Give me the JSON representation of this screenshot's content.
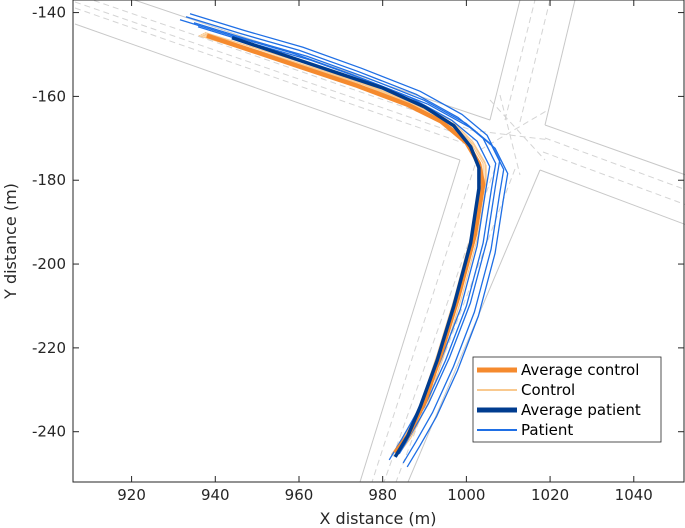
{
  "chart_data": {
    "type": "line",
    "xlabel": "X distance (m)",
    "ylabel": "Y distance (m)",
    "xlim": [
      906,
      1052
    ],
    "ylim": [
      -252,
      -137
    ],
    "xticks": [
      920,
      940,
      960,
      980,
      1000,
      1020,
      1040
    ],
    "yticks": [
      -140,
      -160,
      -180,
      -200,
      -220,
      -240
    ],
    "grid": false,
    "legend_position": "bottom-right",
    "colors": {
      "average_control": "#f58a2e",
      "control": "#f9c98f",
      "average_patient": "#003c8f",
      "patient": "#1f6fe5",
      "road": "#c8c8c8",
      "road_dashed": "#d4d4d4"
    },
    "series": [
      {
        "name": "Average control",
        "x": [
          938,
          950,
          962,
          974,
          986,
          994,
          1000,
          1003,
          1004,
          1002,
          998,
          994,
          990,
          986,
          983
        ],
        "y": [
          -145.5,
          -149.5,
          -153.5,
          -157.5,
          -162,
          -166,
          -171,
          -176,
          -181,
          -193,
          -208,
          -221,
          -233,
          -241,
          -245
        ]
      },
      {
        "name": "Control",
        "x": [
          937,
          950,
          963,
          976,
          988,
          996,
          1001,
          1004,
          1004,
          1002,
          998,
          994,
          990,
          986,
          983
        ],
        "y": [
          -145,
          -149,
          -153,
          -157,
          -162,
          -166,
          -171,
          -176,
          -181,
          -193,
          -208,
          -221,
          -233,
          -241,
          -245
        ]
      },
      {
        "name": "Average patient",
        "x": [
          944,
          956,
          968,
          980,
          990,
          997,
          1001,
          1003,
          1003,
          1001,
          997,
          993,
          989,
          986,
          983
        ],
        "y": [
          -146,
          -150,
          -154,
          -158,
          -162.5,
          -167,
          -172,
          -177,
          -182,
          -195,
          -210,
          -223,
          -234,
          -241,
          -246
        ]
      },
      {
        "name": "Patient",
        "x": [
          933,
          946,
          960,
          974,
          988,
          998,
          1004,
          1007,
          1006,
          1004,
          1000,
          995,
          990,
          986,
          983
        ],
        "y": [
          -141,
          -145,
          -149,
          -154,
          -159.5,
          -165,
          -170,
          -176,
          -182,
          -195,
          -210,
          -223,
          -234,
          -241,
          -246
        ]
      }
    ]
  }
}
